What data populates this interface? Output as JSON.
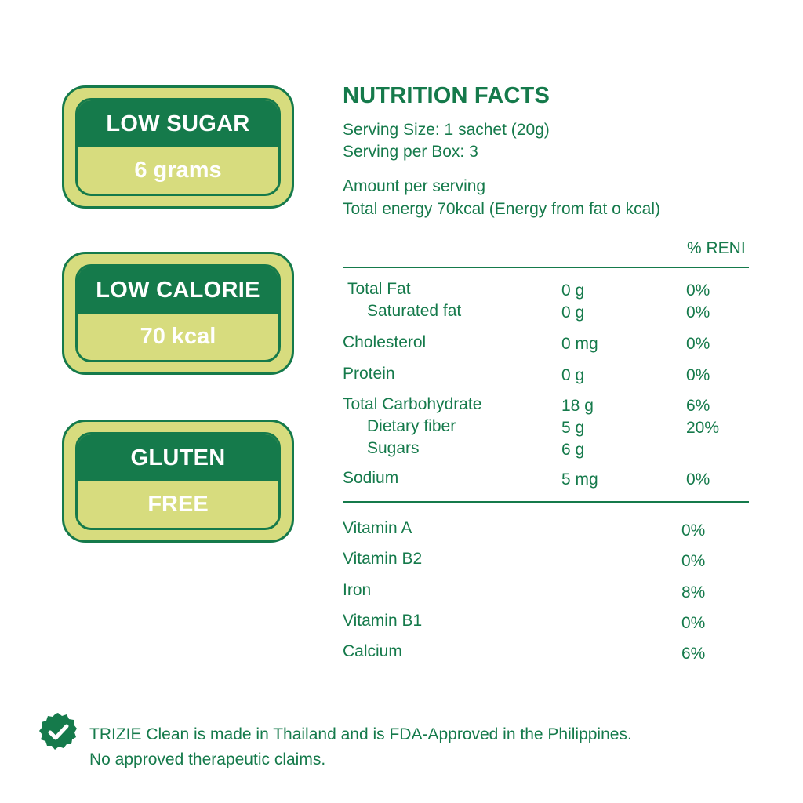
{
  "badges": [
    {
      "top": "LOW SUGAR",
      "bottom": "6 grams"
    },
    {
      "top": "LOW CALORIE",
      "bottom": "70 kcal"
    },
    {
      "top": "GLUTEN",
      "bottom": "FREE"
    }
  ],
  "nutrition": {
    "title": "NUTRITION FACTS",
    "serving_size": "Serving Size: 1 sachet (20g)",
    "serving_per_box": "Serving per Box: 3",
    "amount_per_serving": "Amount per serving",
    "total_energy": "Total energy 70kcal (Energy from fat o kcal)",
    "reni_header": "% RENI",
    "rows": [
      {
        "name": "Total Fat",
        "amount": "0 g",
        "pct": "0%"
      },
      {
        "name": "Saturated fat",
        "amount": "0 g",
        "pct": "0%"
      },
      {
        "name": "Cholesterol",
        "amount": "0 mg",
        "pct": "0%"
      },
      {
        "name": "Protein",
        "amount": "0 g",
        "pct": "0%"
      },
      {
        "name": "Total Carbohydrate",
        "amount": "18 g",
        "pct": "6%"
      },
      {
        "name": "Dietary fiber",
        "amount": "5 g",
        "pct": "20%"
      },
      {
        "name": "Sugars",
        "amount": "6 g",
        "pct": ""
      },
      {
        "name": "Sodium",
        "amount": "5 mg",
        "pct": "0%"
      }
    ],
    "vitamins": [
      {
        "name": "Vitamin A",
        "pct": "0%"
      },
      {
        "name": "Vitamin B2",
        "pct": "0%"
      },
      {
        "name": "Iron",
        "pct": "8%"
      },
      {
        "name": "Vitamin B1",
        "pct": "0%"
      },
      {
        "name": "Calcium",
        "pct": "6%"
      }
    ]
  },
  "footer": {
    "icon": "check-badge-icon",
    "line1": "TRIZIE Clean is made in Thailand and is FDA-Approved in the Philippines.",
    "line2": "No approved therapeutic claims."
  },
  "colors": {
    "green": "#157a4b",
    "lime": "#d7dc7e",
    "background": "#ffffff"
  }
}
